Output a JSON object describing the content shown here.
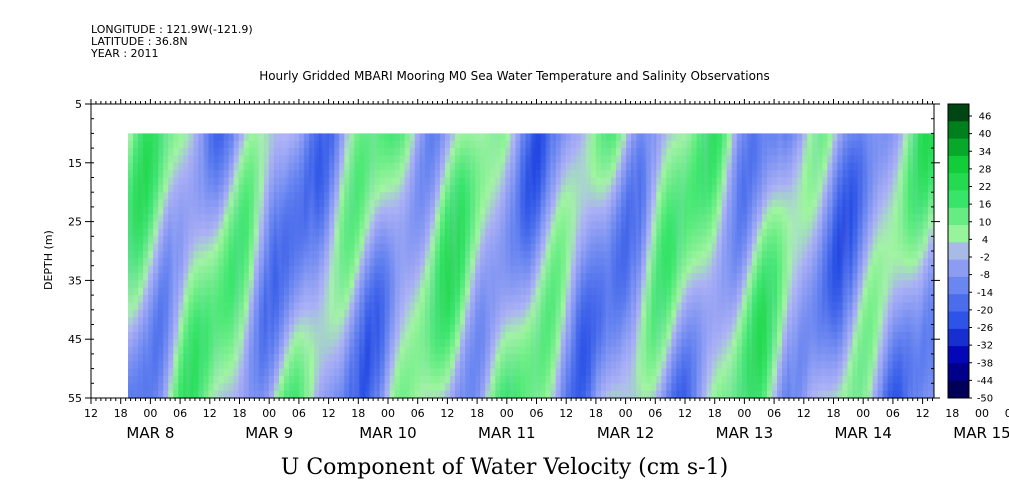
{
  "header": {
    "longitude": "LONGITUDE : 121.9W(-121.9)",
    "latitude": "LATITUDE : 36.8N",
    "year": "YEAR : 2011"
  },
  "chart_data": {
    "type": "heatmap",
    "title": "Hourly Gridded MBARI Mooring M0 Sea Water Temperature and Salinity Observations",
    "xlabel": "U Component of Water Velocity (cm s-1)",
    "ylabel": "DEPTH (m)",
    "ylim": [
      5,
      55
    ],
    "y_ticks": [
      5,
      15,
      25,
      35,
      45,
      55
    ],
    "data_depth_range": [
      10,
      55
    ],
    "x_range_hours": [
      "MAR 7 12:00",
      "MAR 15 14:00"
    ],
    "x_hour_ticks": [
      "12",
      "18",
      "00",
      "06",
      "12",
      "18",
      "00",
      "06",
      "12",
      "18",
      "00",
      "06",
      "12",
      "18",
      "00",
      "06",
      "12",
      "18",
      "00",
      "06",
      "12",
      "18",
      "00",
      "06",
      "12",
      "18",
      "00",
      "06",
      "12",
      "18",
      "00",
      "06",
      "12"
    ],
    "x_day_labels": [
      "MAR  8",
      "MAR  9",
      "MAR 10",
      "MAR 11",
      "MAR 12",
      "MAR 13",
      "MAR 14",
      "MAR 15"
    ],
    "colorbar": {
      "levels": [
        -50,
        -44,
        -38,
        -32,
        -26,
        -20,
        -14,
        -8,
        -2,
        4,
        10,
        16,
        22,
        28,
        34,
        40,
        46
      ],
      "labels": [
        "46",
        "40",
        "34",
        "28",
        "22",
        "16",
        "10",
        "4",
        "-2",
        "-8",
        "-14",
        "-20",
        "-26",
        "-32",
        "-38",
        "-44",
        "-50"
      ]
    }
  }
}
